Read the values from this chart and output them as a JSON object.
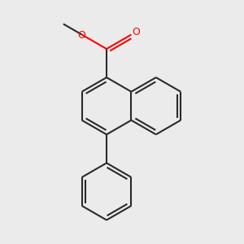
{
  "background_color": "#ebebeb",
  "bond_color": "#2a2a2a",
  "oxygen_color": "#ff0000",
  "line_width": 1.5,
  "fig_size": [
    3.0,
    3.0
  ],
  "dpi": 100,
  "bl": 0.38,
  "scale": 1.0
}
